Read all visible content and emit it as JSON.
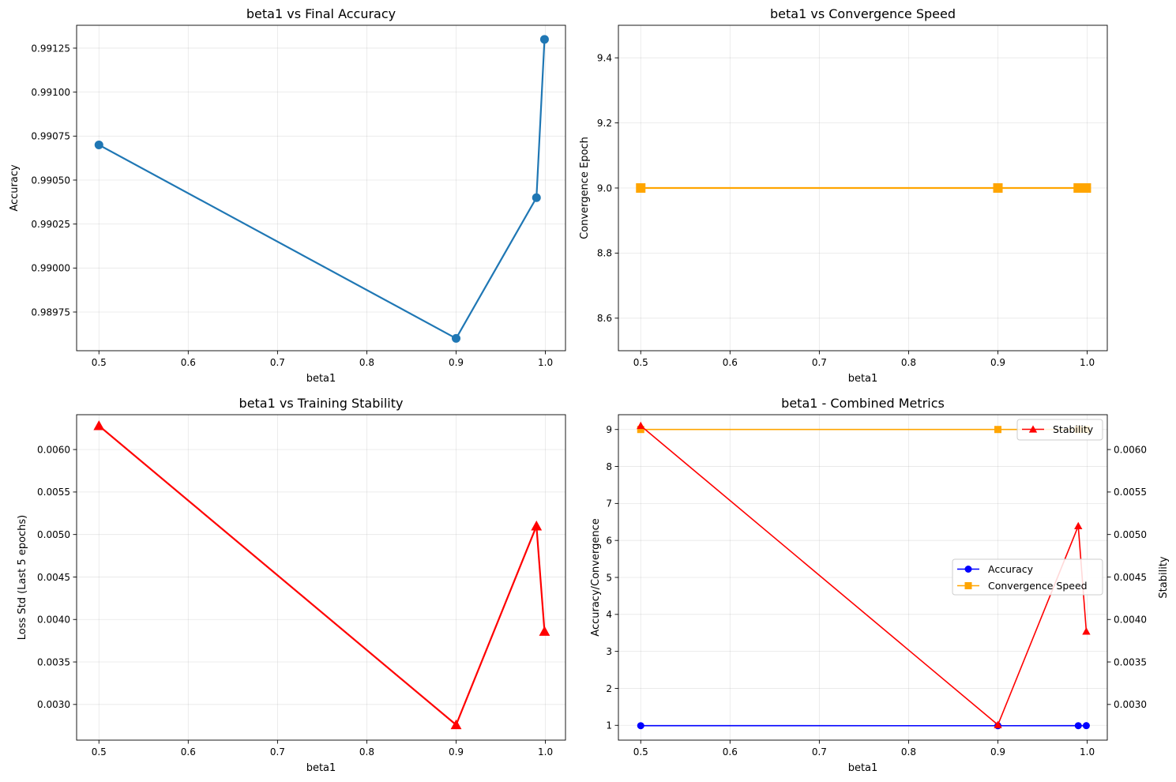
{
  "chart_data": [
    {
      "type": "line",
      "title": "beta1 vs Final Accuracy",
      "xlabel": "beta1",
      "ylabel": "Accuracy",
      "xlim": [
        0.475,
        1.0225
      ],
      "ylim": [
        0.98953,
        0.99138
      ],
      "xticks": [
        0.5,
        0.6,
        0.7,
        0.8,
        0.9,
        1.0
      ],
      "xtick_labels": [
        "0.5",
        "0.6",
        "0.7",
        "0.8",
        "0.9",
        "1.0"
      ],
      "yticks": [
        0.98975,
        0.99,
        0.99025,
        0.9905,
        0.99075,
        0.991,
        0.99125
      ],
      "ytick_labels": [
        "0.98975",
        "0.99000",
        "0.99025",
        "0.99050",
        "0.99075",
        "0.99100",
        "0.99125"
      ],
      "grid": true,
      "series": [
        {
          "x": [
            0.5,
            0.9,
            0.99,
            0.999
          ],
          "y": [
            0.9907,
            0.9896,
            0.9904,
            0.9913
          ],
          "color": "#1f77b4",
          "marker": "circle"
        }
      ]
    },
    {
      "type": "line",
      "title": "beta1 vs Convergence Speed",
      "xlabel": "beta1",
      "ylabel": "Convergence Epoch",
      "xlim": [
        0.475,
        1.0225
      ],
      "ylim": [
        8.5,
        9.5
      ],
      "xticks": [
        0.5,
        0.6,
        0.7,
        0.8,
        0.9,
        1.0
      ],
      "xtick_labels": [
        "0.5",
        "0.6",
        "0.7",
        "0.8",
        "0.9",
        "1.0"
      ],
      "yticks": [
        8.6,
        8.8,
        9.0,
        9.2,
        9.4
      ],
      "ytick_labels": [
        "8.6",
        "8.8",
        "9.0",
        "9.2",
        "9.4"
      ],
      "grid": true,
      "series": [
        {
          "x": [
            0.5,
            0.9,
            0.99,
            0.999
          ],
          "y": [
            9,
            9,
            9,
            9
          ],
          "color": "#ffa500",
          "marker": "square"
        }
      ]
    },
    {
      "type": "line",
      "title": "beta1 vs Training Stability",
      "xlabel": "beta1",
      "ylabel": "Loss Std (Last 5 epochs)",
      "xlim": [
        0.475,
        1.0225
      ],
      "ylim": [
        0.00258,
        0.00641
      ],
      "xticks": [
        0.5,
        0.6,
        0.7,
        0.8,
        0.9,
        1.0
      ],
      "xtick_labels": [
        "0.5",
        "0.6",
        "0.7",
        "0.8",
        "0.9",
        "1.0"
      ],
      "yticks": [
        0.003,
        0.0035,
        0.004,
        0.0045,
        0.005,
        0.0055,
        0.006
      ],
      "ytick_labels": [
        "0.0030",
        "0.0035",
        "0.0040",
        "0.0045",
        "0.0050",
        "0.0055",
        "0.0060"
      ],
      "grid": true,
      "series": [
        {
          "x": [
            0.5,
            0.9,
            0.99,
            0.999
          ],
          "y": [
            0.00628,
            0.00276,
            0.0051,
            0.00386
          ],
          "color": "#ff0000",
          "marker": "triangle"
        }
      ]
    },
    {
      "type": "line",
      "title": "beta1 - Combined Metrics",
      "xlabel": "beta1",
      "ylabel": "Accuracy/Convergence",
      "ylabel_right": "Stability",
      "xlim": [
        0.475,
        1.0225
      ],
      "ylim": [
        0.6,
        9.4
      ],
      "ylim_right": [
        0.00258,
        0.00641
      ],
      "xticks": [
        0.5,
        0.6,
        0.7,
        0.8,
        0.9,
        1.0
      ],
      "xtick_labels": [
        "0.5",
        "0.6",
        "0.7",
        "0.8",
        "0.9",
        "1.0"
      ],
      "yticks": [
        1,
        2,
        3,
        4,
        5,
        6,
        7,
        8,
        9
      ],
      "ytick_labels": [
        "1",
        "2",
        "3",
        "4",
        "5",
        "6",
        "7",
        "8",
        "9"
      ],
      "yticks_right": [
        0.003,
        0.0035,
        0.004,
        0.0045,
        0.005,
        0.0055,
        0.006
      ],
      "ytick_labels_right": [
        "0.0030",
        "0.0035",
        "0.0040",
        "0.0045",
        "0.0050",
        "0.0055",
        "0.0060"
      ],
      "grid": true,
      "series": [
        {
          "name": "Accuracy",
          "axis": "left",
          "x": [
            0.5,
            0.9,
            0.99,
            0.999
          ],
          "y": [
            0.9907,
            0.9896,
            0.9904,
            0.9913
          ],
          "color": "#0000ff",
          "marker": "circle"
        },
        {
          "name": "Convergence Speed",
          "axis": "left",
          "x": [
            0.5,
            0.9,
            0.99,
            0.999
          ],
          "y": [
            9,
            9,
            9,
            9
          ],
          "color": "#ffa500",
          "marker": "square"
        },
        {
          "name": "Stability",
          "axis": "right",
          "x": [
            0.5,
            0.9,
            0.99,
            0.999
          ],
          "y": [
            0.00628,
            0.00276,
            0.0051,
            0.00386
          ],
          "color": "#ff0000",
          "marker": "triangle"
        }
      ],
      "legends": [
        {
          "placement": "upper-right",
          "entries": [
            "Stability"
          ]
        },
        {
          "placement": "center-right",
          "entries": [
            "Accuracy",
            "Convergence Speed"
          ]
        }
      ]
    }
  ]
}
